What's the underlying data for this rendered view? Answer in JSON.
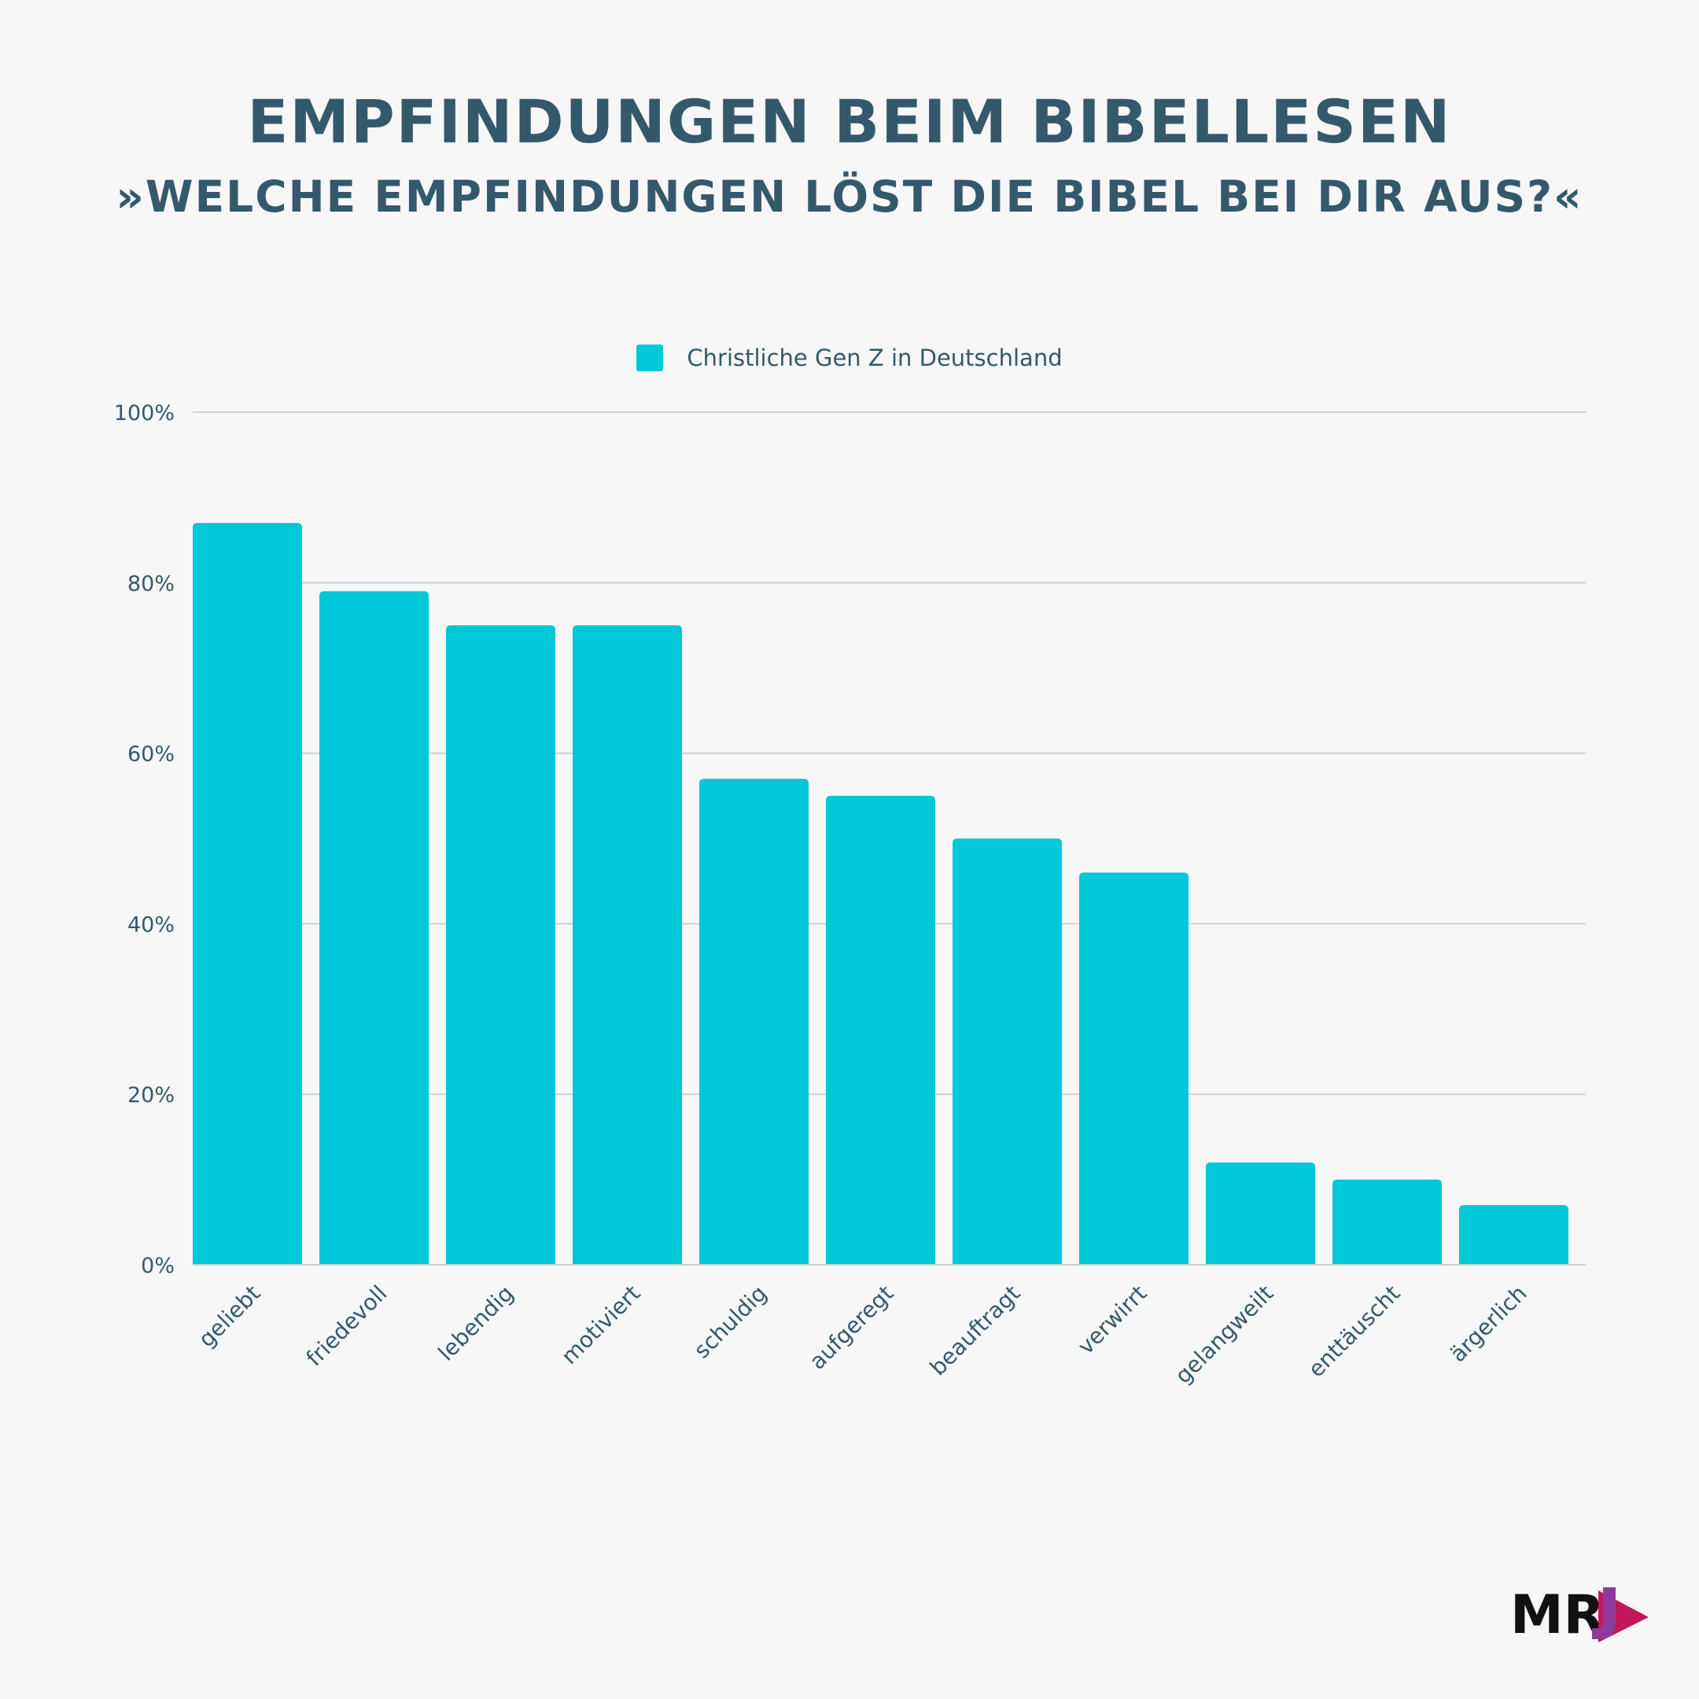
{
  "header": {
    "title": "EMPFINDUNGEN BEIM BIBELLESEN",
    "subtitle": "»WELCHE EMPFINDUNGEN LÖST DIE BIBEL BEI DIR AUS?«"
  },
  "logo": {
    "text": "MR",
    "accent_colors": [
      "#c2185b",
      "#8e3a9d"
    ]
  },
  "colors": {
    "bar": "#00c8d9",
    "text": "#34596b",
    "grid": "#c9d3d6",
    "background": "#f7f7f7"
  },
  "chart_data": {
    "type": "bar",
    "title": "EMPFINDUNGEN BEIM BIBELLESEN",
    "subtitle": "»WELCHE EMPFINDUNGEN LÖST DIE BIBEL BEI DIR AUS?«",
    "categories": [
      "geliebt",
      "friedevoll",
      "lebendig",
      "motiviert",
      "schuldig",
      "aufgeregt",
      "beauftragt",
      "verwirrt",
      "gelangweilt",
      "enttäuscht",
      "ärgerlich"
    ],
    "series": [
      {
        "name": "Christliche Gen Z in Deutschland",
        "color": "#00c8d9",
        "values": [
          87,
          79,
          75,
          75,
          57,
          55,
          50,
          46,
          12,
          10,
          7
        ]
      }
    ],
    "ylim": [
      0,
      100
    ],
    "yticks": [
      0,
      20,
      40,
      60,
      80,
      100
    ],
    "ytick_labels": [
      "0%",
      "20%",
      "40%",
      "60%",
      "80%",
      "100%"
    ],
    "grid": true,
    "legend_position": "top-center",
    "xlabel": "",
    "ylabel": ""
  }
}
